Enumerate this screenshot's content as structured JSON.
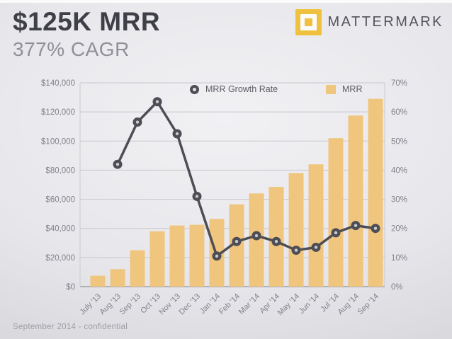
{
  "header": {
    "title": "$125K MRR",
    "subtitle": "377% CAGR",
    "brand": "MATTERMARK"
  },
  "legend": {
    "growth_label": "MRR Growth Rate",
    "mrr_label": "MRR"
  },
  "footer": {
    "text": "September 2014 - confidential"
  },
  "colors": {
    "bar": "#f0c57e",
    "line": "#4d4d55",
    "marker_hole": "#cbcbd1",
    "grid": "#c6c6cc",
    "axis_line": "#9fa0a6",
    "plot_border": "#c9c9cf",
    "logo_gold": "#efc13e"
  },
  "chart_data": {
    "type": "bar",
    "subtype": "bar+line combo",
    "title": "$125K MRR",
    "subtitle": "377% CAGR",
    "categories": [
      "July '13",
      "Aug '13",
      "Sep '13",
      "Oct '13",
      "Nov '13",
      "Dec '13",
      "Jan '14",
      "Feb '14",
      "Mar '14",
      "Apr '14",
      "May '14",
      "Jun '14",
      "Jul '14",
      "Aug '14",
      "Sep '14"
    ],
    "series": [
      {
        "name": "MRR",
        "type": "bar",
        "axis": "left",
        "values": [
          7500,
          12000,
          25000,
          38000,
          42000,
          42500,
          46500,
          56500,
          64000,
          68500,
          78000,
          84000,
          102000,
          117500,
          129000
        ]
      },
      {
        "name": "MRR Growth Rate",
        "type": "line",
        "axis": "right",
        "unit": "%",
        "values": [
          null,
          42,
          56.5,
          63.5,
          52.5,
          31,
          10.5,
          15.5,
          17.5,
          15.5,
          12.5,
          13.5,
          18.5,
          21,
          20
        ]
      }
    ],
    "left_axis": {
      "min": 0,
      "max": 140000,
      "ticks": [
        "$0",
        "$20,000",
        "$40,000",
        "$60,000",
        "$80,000",
        "$100,000",
        "$120,000",
        "$140,000"
      ]
    },
    "right_axis": {
      "min": 0,
      "max": 70,
      "ticks": [
        "0%",
        "10%",
        "20%",
        "30%",
        "40%",
        "50%",
        "60%",
        "70%"
      ]
    },
    "grid": true,
    "legend_position": "top-inside"
  }
}
